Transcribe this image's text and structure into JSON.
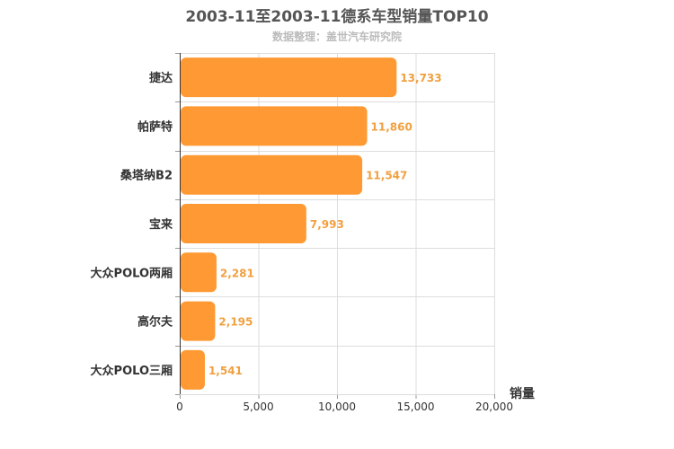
{
  "chart_data": {
    "type": "bar",
    "orientation": "horizontal",
    "title": "2003-11至2003-11德系车型销量TOP10",
    "subtitle": "数据整理：盖世汽车研究院",
    "xlabel": "销量",
    "ylabel": "",
    "categories": [
      "捷达",
      "帕萨特",
      "桑塔纳B2",
      "宝来",
      "大众POLO两厢",
      "高尔夫",
      "大众POLO三厢"
    ],
    "values": [
      13733,
      11860,
      11547,
      7993,
      2281,
      2195,
      1541
    ],
    "value_labels": [
      "13,733",
      "11,860",
      "11,547",
      "7,993",
      "2,281",
      "2,195",
      "1,541"
    ],
    "xlim": [
      0,
      20000
    ],
    "x_ticks": [
      0,
      5000,
      10000,
      15000,
      20000
    ],
    "x_tick_labels": [
      "0",
      "5,000",
      "10,000",
      "15,000",
      "20,000"
    ],
    "grid": true,
    "colors": {
      "bar": "#ff9933",
      "value_label": "#f0a040",
      "grid": "#dddddd",
      "axis": "#333333",
      "category_label": "#333333",
      "tick_label": "#333333",
      "title": "#555555",
      "subtitle": "#bbbbbb"
    }
  }
}
